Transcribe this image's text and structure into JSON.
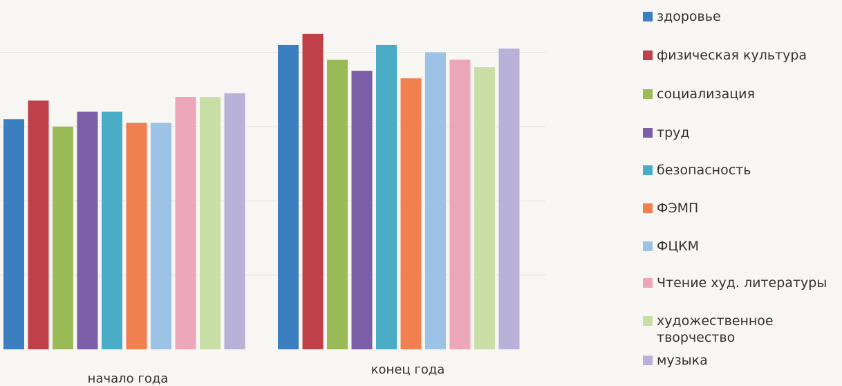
{
  "chart_data": {
    "type": "bar",
    "categories": [
      "начало года",
      "конец года"
    ],
    "series": [
      {
        "name": "здоровье",
        "color": "#3c7fc1",
        "values": [
          62,
          82
        ]
      },
      {
        "name": "физическая культура",
        "color": "#c0404a",
        "values": [
          67,
          85
        ]
      },
      {
        "name": "социализация",
        "color": "#9bbb59",
        "values": [
          60,
          78
        ]
      },
      {
        "name": "труд",
        "color": "#7a5fa8",
        "values": [
          64,
          75
        ]
      },
      {
        "name": "безопасность",
        "color": "#4bacc6",
        "values": [
          64,
          82
        ]
      },
      {
        "name": "ФЭМП",
        "color": "#f08050",
        "values": [
          61,
          73
        ]
      },
      {
        "name": "ФЦКМ",
        "color": "#9cc3e6",
        "values": [
          61,
          80
        ]
      },
      {
        "name": "Чтение худ. литературы",
        "color": "#eca6b9",
        "values": [
          68,
          78
        ]
      },
      {
        "name": "художественное творчество",
        "color": "#c9dfa5",
        "values": [
          68,
          76
        ]
      },
      {
        "name": "музыка",
        "color": "#b9b2d8",
        "values": [
          69,
          81
        ]
      }
    ],
    "grid": true,
    "legend_position": "right"
  }
}
